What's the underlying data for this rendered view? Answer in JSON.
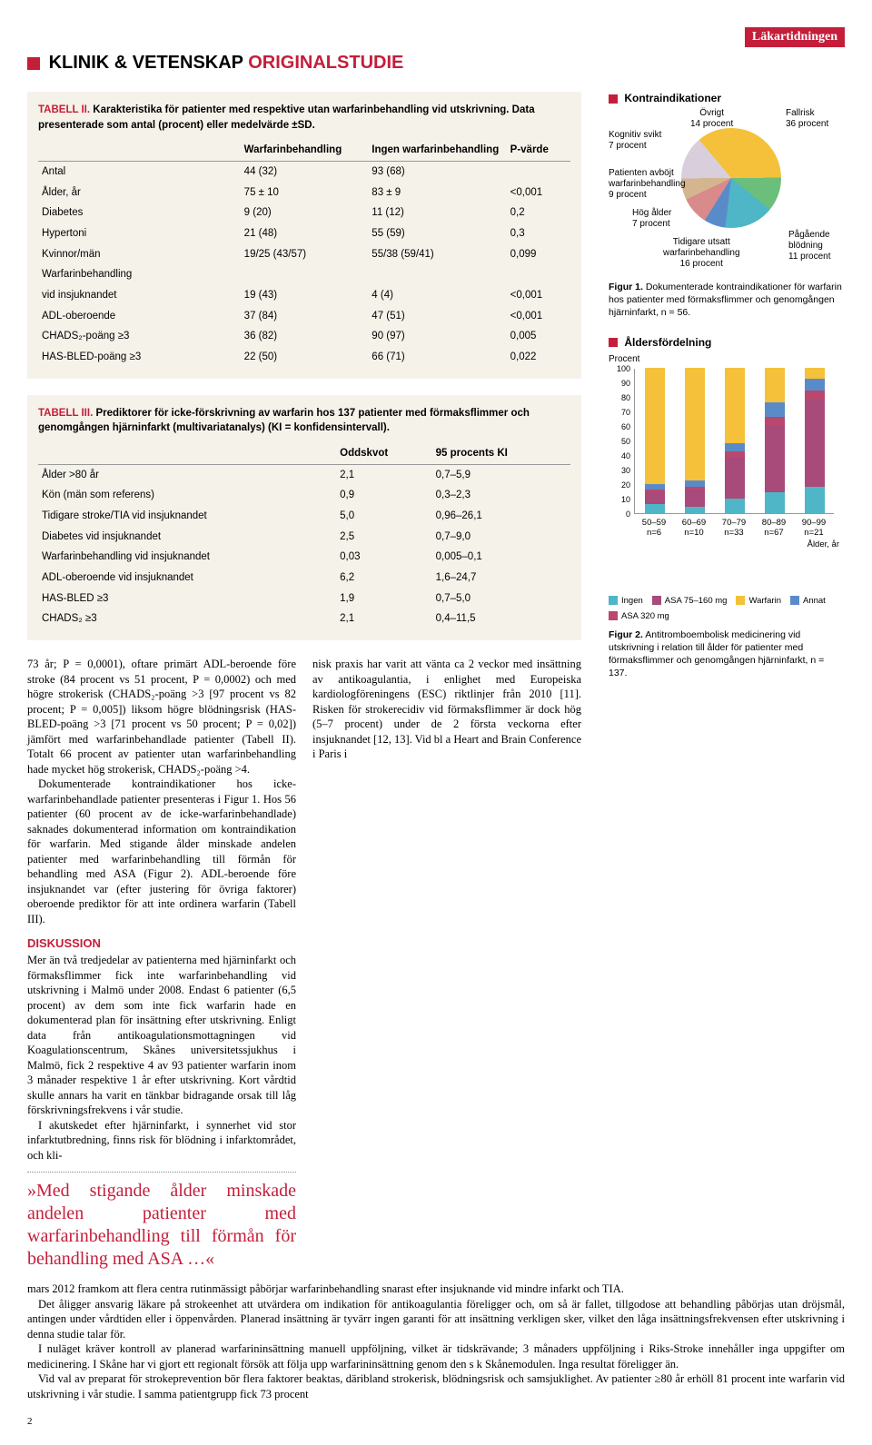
{
  "brand": "Läkartidningen",
  "section_header": {
    "prefix": "KLINIK & VETENSKAP",
    "suffix": "ORIGINALSTUDIE"
  },
  "table2": {
    "title": "TABELL II.",
    "caption": "Karakteristika för patienter med respektive utan warfarinbehandling vid utskrivning. Data presenterade som antal (procent) eller medelvärde ±SD.",
    "columns": [
      "",
      "Warfarinbehandling",
      "Ingen warfarinbehandling",
      "P-värde"
    ],
    "rows": [
      [
        "Antal",
        "44 (32)",
        "93 (68)",
        ""
      ],
      [
        "Ålder, år",
        "75 ± 10",
        "83 ± 9",
        "<0,001"
      ],
      [
        "Diabetes",
        "9 (20)",
        "11 (12)",
        "0,2"
      ],
      [
        "Hypertoni",
        "21 (48)",
        "55 (59)",
        "0,3"
      ],
      [
        "Kvinnor/män",
        "19/25 (43/57)",
        "55/38 (59/41)",
        "0,099"
      ],
      [
        "Warfarinbehandling",
        "",
        "",
        ""
      ],
      [
        "vid insjuknandet",
        "19 (43)",
        "4 (4)",
        "<0,001"
      ],
      [
        "ADL-oberoende",
        "37 (84)",
        "47 (51)",
        "<0,001"
      ],
      [
        "CHADS₂-poäng ≥3",
        "36 (82)",
        "90 (97)",
        "0,005"
      ],
      [
        "HAS-BLED-poäng ≥3",
        "22 (50)",
        "66 (71)",
        "0,022"
      ]
    ]
  },
  "table3": {
    "title": "TABELL III.",
    "caption": "Prediktorer för icke-förskrivning av warfarin hos 137 patienter med förmaksflimmer och genomgången hjärninfarkt (multivariatanalys) (KI = konfidensintervall).",
    "columns": [
      "",
      "Oddskvot",
      "95 procents KI"
    ],
    "rows": [
      [
        "Ålder >80 år",
        "2,1",
        "0,7–5,9"
      ],
      [
        "Kön (män som referens)",
        "0,9",
        "0,3–2,3"
      ],
      [
        "Tidigare stroke/TIA vid insjuknandet",
        "5,0",
        "0,96–26,1"
      ],
      [
        "Diabetes vid insjuknandet",
        "2,5",
        "0,7–9,0"
      ],
      [
        "Warfarinbehandling vid insjuknandet",
        "0,03",
        "0,005–0,1"
      ],
      [
        "ADL-oberoende vid insjuknandet",
        "6,2",
        "1,6–24,7"
      ],
      [
        "HAS-BLED ≥3",
        "1,9",
        "0,7–5,0"
      ],
      [
        "CHADS₂ ≥3",
        "2,1",
        "0,4–11,5"
      ]
    ]
  },
  "body": {
    "p1": "73 år; P = 0,0001), oftare primärt ADL-beroende före stroke (84 procent vs 51 procent, P = 0,0002) och med högre strokerisk (CHADS₂-poäng >3 [97 procent vs 82 procent; P = 0,005]) liksom högre blödningsrisk (HAS-BLED-poäng >3 [71 procent vs 50 procent; P = 0,02]) jämfört med warfarinbehandlade patienter (Tabell II). Totalt 66 procent av patienter utan warfarinbehandling hade mycket hög strokerisk, CHADS₂-poäng >4.",
    "p2": "Dokumenterade kontraindikationer hos icke-warfarinbehandlade patienter presenteras i Figur 1. Hos 56 patienter (60 procent av de icke-warfarinbehandlade) saknades dokumenterad information om kontraindikation för warfarin. Med stigande ålder minskade andelen patienter med warfarinbehandling till förmån för behandling med ASA (Figur 2). ADL-beroende före insjuknandet var (efter justering för övriga faktorer) oberoende prediktor för att inte ordinera warfarin (Tabell III).",
    "discussion_head": "DISKUSSION",
    "p3": "Mer än två tredjedelar av patienterna med hjärninfarkt och förmaksflimmer fick inte warfarinbehandling vid utskrivning i Malmö under 2008. Endast 6 patienter (6,5 procent) av dem som inte fick warfarin hade en dokumenterad plan för insättning efter utskrivning. Enligt data från antikoagulationsmottagningen vid Koagulationscentrum, Skånes universitetssjukhus i Malmö, fick 2 respektive 4 av 93 patienter warfarin inom 3 månader respektive 1 år efter utskrivning. Kort vårdtid skulle annars ha varit en tänkbar bidragande orsak till låg förskrivningsfrekvens i vår studie.",
    "p4": "I akutskedet efter hjärninfarkt, i synnerhet vid stor infarktutbredning, finns risk för blödning i infarktområdet, och kli-",
    "p5a": "nisk praxis har varit att vänta ca 2 veckor med insättning av antikoagulantia, i enlighet med Europeiska kardiologföreningens (ESC) riktlinjer från 2010 [11]. Risken för strokerecidiv vid förmaksflimmer är dock hög (5–7 procent) under de 2 första veckorna efter insjuknandet [12, 13]. Vid bl a Heart and Brain Conference i Paris i",
    "p5b": "mars 2012 framkom att flera centra rutinmässigt påbörjar warfarinbehandling snarast efter insjuknande vid mindre infarkt och TIA.",
    "p6": "Det åligger ansvarig läkare på strokeenhet att utvärdera om indikation för antikoagulantia föreligger och, om så är fallet, tillgodose att behandling påbörjas utan dröjsmål, antingen under vårdtiden eller i öppenvården. Planerad insättning är tyvärr ingen garanti för att insättning verkligen sker, vilket den låga insättningsfrekvensen efter utskrivning i denna studie talar för.",
    "p7": "I nuläget kräver kontroll av planerad warfarininsättning manuell uppföljning, vilket är tidskrävande; 3 månaders uppföljning i Riks-Stroke innehåller inga uppgifter om medicinering. I Skåne har vi gjort ett regionalt försök att följa upp warfarininsättning genom den s k Skånemodulen. Inga resultat föreligger än.",
    "p8": "Vid val av preparat för strokeprevention bör flera faktorer beaktas, däribland strokerisk, blödningsrisk och samsjuklighet. Av patienter ≥80 år erhöll 81 procent inte warfarin vid utskrivning i vår studie. I samma patientgrupp fick 73 procent"
  },
  "pull_quote": "»Med stigande ålder minskade andelen patienter med warfarinbehandling till förmån för behandling med ASA …«",
  "fig1": {
    "title": "Kontraindikationer",
    "labels": {
      "ovrigt": "Övrigt\n14 procent",
      "fallrisk": "Fallrisk\n36 procent",
      "kognitiv": "Kognitiv svikt\n7 procent",
      "avbojt": "Patienten avböjt\nwarfarinbehandling\n9 procent",
      "hogalder": "Hög ålder\n7 procent",
      "tidigare": "Tidigare utsatt\nwarfarinbehandling\n16 procent",
      "blodning": "Pågående\nblödning\n11 procent"
    },
    "slices": [
      {
        "label": "fallrisk",
        "value": 36,
        "color": "#f5c13a"
      },
      {
        "label": "blodning",
        "value": 11,
        "color": "#6bbf7a"
      },
      {
        "label": "tidigare",
        "value": 16,
        "color": "#4fb6c7"
      },
      {
        "label": "hogalder",
        "value": 7,
        "color": "#5a8bc9"
      },
      {
        "label": "avbojt",
        "value": 9,
        "color": "#d98a8a"
      },
      {
        "label": "kognitiv",
        "value": 7,
        "color": "#d3b68f"
      },
      {
        "label": "ovrigt",
        "value": 14,
        "color": "#d9cfdc"
      }
    ],
    "caption_bold": "Figur 1.",
    "caption": "Dokumenterade kontraindikationer för warfarin hos patienter med förmaksflimmer och genomgången hjärninfarkt, n = 56."
  },
  "fig2": {
    "title": "Åldersfördelning",
    "ylabel": "Procent",
    "ymax": 100,
    "ytick": 10,
    "categories": [
      "50–59",
      "60–69",
      "70–79",
      "80–89",
      "90–99"
    ],
    "ns": [
      "n=6",
      "n=10",
      "n=33",
      "n=67",
      "n=21"
    ],
    "legend": [
      {
        "label": "Ingen",
        "color": "#4fb6c7"
      },
      {
        "label": "ASA 75–160 mg",
        "color": "#a84a7a"
      },
      {
        "label": "Warfarin",
        "color": "#f5c13a"
      },
      {
        "label": "Annat",
        "color": "#5a8bc9"
      },
      {
        "label": "ASA 320 mg",
        "color": "#b8486d"
      }
    ],
    "stacks": [
      [
        {
          "c": "#4fb6c7",
          "v": 6
        },
        {
          "c": "#a84a7a",
          "v": 8
        },
        {
          "c": "#b8486d",
          "v": 2
        },
        {
          "c": "#5a8bc9",
          "v": 4
        },
        {
          "c": "#f5c13a",
          "v": 80
        }
      ],
      [
        {
          "c": "#4fb6c7",
          "v": 4
        },
        {
          "c": "#a84a7a",
          "v": 12
        },
        {
          "c": "#b8486d",
          "v": 2
        },
        {
          "c": "#5a8bc9",
          "v": 4
        },
        {
          "c": "#f5c13a",
          "v": 78
        }
      ],
      [
        {
          "c": "#4fb6c7",
          "v": 10
        },
        {
          "c": "#a84a7a",
          "v": 28
        },
        {
          "c": "#b8486d",
          "v": 4
        },
        {
          "c": "#5a8bc9",
          "v": 6
        },
        {
          "c": "#f5c13a",
          "v": 52
        }
      ],
      [
        {
          "c": "#4fb6c7",
          "v": 14
        },
        {
          "c": "#a84a7a",
          "v": 46
        },
        {
          "c": "#b8486d",
          "v": 6
        },
        {
          "c": "#5a8bc9",
          "v": 10
        },
        {
          "c": "#f5c13a",
          "v": 24
        }
      ],
      [
        {
          "c": "#4fb6c7",
          "v": 18
        },
        {
          "c": "#a84a7a",
          "v": 60
        },
        {
          "c": "#b8486d",
          "v": 6
        },
        {
          "c": "#5a8bc9",
          "v": 8
        },
        {
          "c": "#f5c13a",
          "v": 8
        }
      ]
    ],
    "xlabel": "Ålder, år",
    "caption_bold": "Figur 2.",
    "caption": "Antitromboembolisk medicinering vid utskrivning i relation till ålder för patienter med förmaksflimmer och genomgången hjärninfarkt, n = 137."
  },
  "page_number": "2"
}
